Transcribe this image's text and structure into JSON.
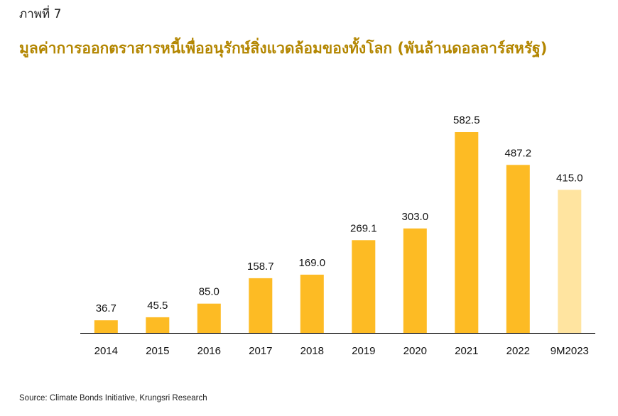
{
  "figure_label": "ภาพที่ 7",
  "source": "Source: Climate Bonds Initiative, Krungsri Research",
  "colors": {
    "bar": "#FDBB24",
    "bar_highlight": "#FFE4A0",
    "title": "#B38600",
    "axis": "#000000"
  },
  "chart_data": {
    "type": "bar",
    "title": "มูลค่าการออกตราสารหนี้เพื่ออนุรักษ์สิ่งแวดล้อมของทั้งโลก (พันล้านดอลลาร์สหรัฐ)",
    "categories": [
      "2014",
      "2015",
      "2016",
      "2017",
      "2018",
      "2019",
      "2020",
      "2021",
      "2022",
      "9M2023"
    ],
    "values": [
      36.7,
      45.5,
      85.0,
      158.7,
      169.0,
      269.1,
      303.0,
      582.5,
      487.2,
      415.0
    ],
    "value_labels": [
      "36.7",
      "45.5",
      "85.0",
      "158.7",
      "169.0",
      "269.1",
      "303.0",
      "582.5",
      "487.2",
      "415.0"
    ],
    "highlight_categories": [
      "9M2023"
    ],
    "xlabel": "",
    "ylabel": "",
    "ylim": [
      0,
      582.5
    ],
    "grid": false,
    "legend": "none"
  }
}
